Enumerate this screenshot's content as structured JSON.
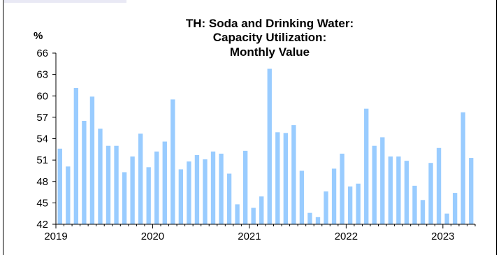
{
  "chart_data": {
    "type": "bar",
    "title_lines": [
      "TH: Soda and Drinking Water:",
      "Capacity Utilization:",
      "Monthly Value"
    ],
    "ylabel": "%",
    "xlabel": "",
    "ylim": [
      42,
      66
    ],
    "yticks": [
      42,
      45,
      48,
      51,
      54,
      57,
      60,
      63,
      66
    ],
    "xtick_labels": [
      "2019",
      "2020",
      "2021",
      "2022",
      "2023"
    ],
    "grid": false,
    "bar_color": "#99ccff",
    "categories": [
      "2019-01",
      "2019-02",
      "2019-03",
      "2019-04",
      "2019-05",
      "2019-06",
      "2019-07",
      "2019-08",
      "2019-09",
      "2019-10",
      "2019-11",
      "2019-12",
      "2020-01",
      "2020-02",
      "2020-03",
      "2020-04",
      "2020-05",
      "2020-06",
      "2020-07",
      "2020-08",
      "2020-09",
      "2020-10",
      "2020-11",
      "2020-12",
      "2021-01",
      "2021-02",
      "2021-03",
      "2021-04",
      "2021-05",
      "2021-06",
      "2021-07",
      "2021-08",
      "2021-09",
      "2021-10",
      "2021-11",
      "2021-12",
      "2022-01",
      "2022-02",
      "2022-03",
      "2022-04",
      "2022-05",
      "2022-06",
      "2022-07",
      "2022-08",
      "2022-09",
      "2022-10",
      "2022-11",
      "2022-12",
      "2023-01",
      "2023-02",
      "2023-03",
      "2023-04"
    ],
    "values": [
      52.6,
      50.1,
      61.1,
      56.5,
      59.9,
      55.4,
      53.0,
      53.0,
      49.3,
      51.5,
      54.7,
      50.0,
      52.2,
      53.6,
      59.5,
      49.7,
      50.8,
      51.7,
      51.1,
      52.2,
      51.9,
      49.1,
      44.8,
      52.3,
      44.3,
      45.9,
      63.8,
      54.9,
      54.8,
      55.9,
      49.5,
      43.6,
      43.0,
      46.6,
      49.8,
      51.9,
      47.3,
      47.7,
      58.2,
      53.0,
      54.2,
      51.5,
      51.5,
      50.9,
      47.4,
      45.4,
      50.6,
      52.7,
      43.5,
      46.4,
      57.7,
      51.3
    ]
  }
}
